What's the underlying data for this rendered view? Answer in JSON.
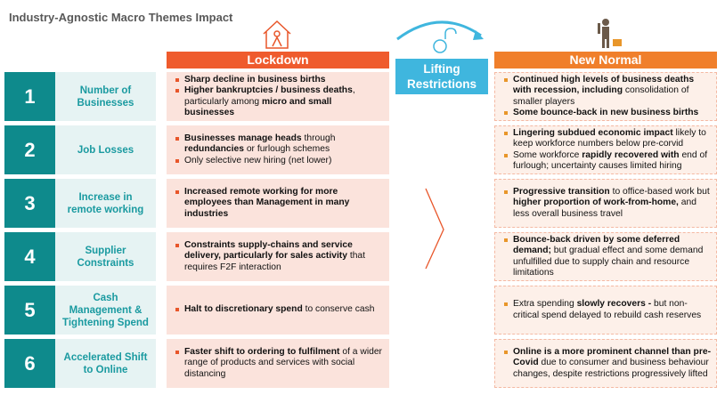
{
  "title": "Industry-Agnostic Macro Themes Impact",
  "columns": {
    "lockdown": "Lockdown",
    "transition": "Lifting Restrictions",
    "new_normal": "New Normal"
  },
  "rows": [
    {
      "number": "1",
      "label": "Number of Businesses",
      "lockdown": [
        [
          {
            "text": "Sharp decline in business births",
            "bold": true
          }
        ],
        [
          {
            "text": "Higher bankruptcies / business deaths",
            "bold": true
          },
          {
            "text": ", particularly among ",
            "bold": false
          },
          {
            "text": "micro and small businesses",
            "bold": true
          }
        ]
      ],
      "new_normal": [
        [
          {
            "text": "Continued high levels of business deaths with recession, including",
            "bold": true
          },
          {
            "text": " consolidation of smaller players",
            "bold": false
          }
        ],
        [
          {
            "text": "Some bounce-back in new business births",
            "bold": true
          }
        ]
      ]
    },
    {
      "number": "2",
      "label": "Job Losses",
      "lockdown": [
        [
          {
            "text": "Businesses manage heads",
            "bold": true
          },
          {
            "text": " through ",
            "bold": false
          },
          {
            "text": "redundancies",
            "bold": true
          },
          {
            "text": " or furlough schemes",
            "bold": false
          }
        ],
        [
          {
            "text": "Only selective new hiring (net lower)",
            "bold": false
          }
        ]
      ],
      "new_normal": [
        [
          {
            "text": "Lingering subdued economic impact",
            "bold": true
          },
          {
            "text": " likely to keep workforce numbers below pre-corvid",
            "bold": false
          }
        ],
        [
          {
            "text": "Some workforce ",
            "bold": false
          },
          {
            "text": "rapidly recovered with",
            "bold": true
          },
          {
            "text": " end of furlough; uncertainty causes limited hiring",
            "bold": false
          }
        ]
      ]
    },
    {
      "number": "3",
      "label": "Increase in remote working",
      "lockdown": [
        [
          {
            "text": "Increased remote working for more employees than Management in many industries",
            "bold": true
          }
        ]
      ],
      "new_normal": [
        [
          {
            "text": "Progressive transition",
            "bold": true
          },
          {
            "text": " to office-based work but ",
            "bold": false
          },
          {
            "text": "higher proportion of work-from-home,",
            "bold": true
          },
          {
            "text": " and less overall business travel",
            "bold": false
          }
        ]
      ]
    },
    {
      "number": "4",
      "label": "Supplier Constraints",
      "lockdown": [
        [
          {
            "text": "Constraints supply-chains and service delivery, particularly for sales activity",
            "bold": true
          },
          {
            "text": " that requires F2F interaction",
            "bold": false
          }
        ]
      ],
      "new_normal": [
        [
          {
            "text": "Bounce-back driven by some deferred demand;",
            "bold": true
          },
          {
            "text": " but gradual effect and some demand unfulfilled due to supply chain and resource limitations",
            "bold": false
          }
        ]
      ]
    },
    {
      "number": "5",
      "label": "Cash Management & Tightening Spend",
      "lockdown": [
        [
          {
            "text": "Halt to discretionary spend",
            "bold": true
          },
          {
            "text": " to conserve cash",
            "bold": false
          }
        ]
      ],
      "new_normal": [
        [
          {
            "text": "Extra spending ",
            "bold": false
          },
          {
            "text": "slowly recovers -",
            "bold": true
          },
          {
            "text": " but non-critical spend delayed to rebuild cash reserves",
            "bold": false
          }
        ]
      ]
    },
    {
      "number": "6",
      "label": "Accelerated Shift to Online",
      "lockdown": [
        [
          {
            "text": "Faster shift to ordering to fulfilment",
            "bold": true
          },
          {
            "text": " of a wider range of products and services with social distancing",
            "bold": false
          }
        ]
      ],
      "new_normal": [
        [
          {
            "text": "Online is a more prominent channel than pre-Covid",
            "bold": true
          },
          {
            "text": " due to consumer and business behaviour changes, despite restrictions progressively lifted",
            "bold": false
          }
        ]
      ]
    }
  ]
}
